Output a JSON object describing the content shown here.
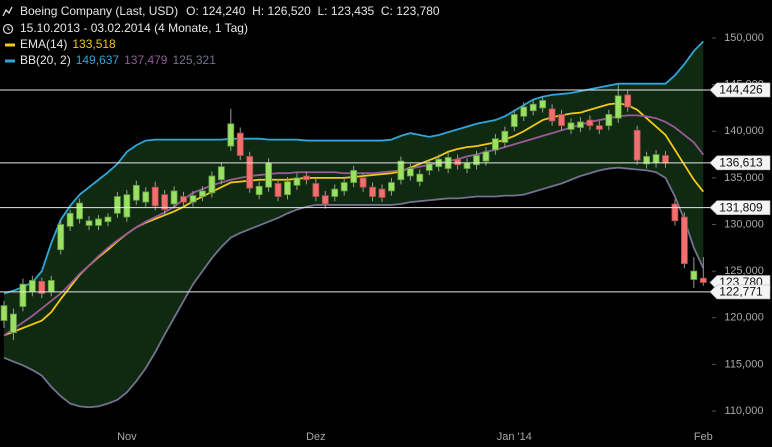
{
  "header": {
    "title": "Boeing Company (Last, USD)",
    "ohlc": "O: 124,240  H: 126,520  L: 123,435  C: 123,780",
    "period": "15.10.2013 - 03.02.2014 (4 Monate, 1 Tag)"
  },
  "chart_data": {
    "type": "candlestick",
    "categories": [
      null,
      null,
      null,
      null,
      null,
      null,
      null,
      null,
      null,
      null,
      null,
      null,
      null,
      "Nov",
      null,
      null,
      null,
      null,
      null,
      null,
      null,
      null,
      null,
      null,
      null,
      null,
      null,
      null,
      null,
      null,
      null,
      null,
      null,
      "Dez",
      null,
      null,
      null,
      null,
      null,
      null,
      null,
      null,
      null,
      null,
      null,
      null,
      null,
      null,
      null,
      null,
      null,
      null,
      null,
      null,
      "Jan '14",
      null,
      null,
      null,
      null,
      null,
      null,
      null,
      null,
      null,
      null,
      null,
      null,
      null,
      null,
      null,
      null,
      null,
      null,
      null,
      "Feb"
    ],
    "open": [
      119700,
      118400,
      121200,
      122800,
      123900,
      122800,
      127300,
      129800,
      130600,
      129900,
      129900,
      130300,
      131200,
      130800,
      132600,
      132400,
      134000,
      133200,
      132200,
      133000,
      132400,
      133000,
      133400,
      134800,
      138400,
      139800,
      137300,
      133200,
      134000,
      134400,
      133200,
      134200,
      135200,
      134400,
      133100,
      133000,
      133600,
      134500,
      135000,
      134000,
      133800,
      133600,
      134800,
      135200,
      134600,
      135800,
      136200,
      136000,
      137000,
      136000,
      136400,
      136800,
      138000,
      138800,
      140500,
      141600,
      142200,
      142500,
      142400,
      141800,
      140200,
      140400,
      141200,
      140600,
      140600,
      141400,
      143900,
      140100,
      136500,
      136600,
      137400,
      132200,
      130800,
      124100,
      124240
    ],
    "high": [
      121800,
      121000,
      124200,
      124500,
      124300,
      124500,
      130500,
      131600,
      132800,
      130900,
      131000,
      131200,
      133500,
      133700,
      134700,
      134000,
      134600,
      133700,
      134100,
      133500,
      133600,
      134100,
      135700,
      136700,
      142400,
      140400,
      137800,
      134600,
      137100,
      134900,
      135100,
      135500,
      135700,
      134900,
      133600,
      134300,
      135000,
      136300,
      135500,
      134500,
      134300,
      135000,
      137300,
      136500,
      135900,
      137000,
      137500,
      137700,
      137500,
      137100,
      137900,
      138300,
      139700,
      140500,
      142300,
      143100,
      143400,
      143800,
      142900,
      142300,
      141400,
      141500,
      141700,
      141100,
      142300,
      145000,
      144400,
      140600,
      137800,
      138000,
      137900,
      132700,
      131300,
      126500,
      126520
    ],
    "low": [
      118900,
      117600,
      120700,
      122300,
      122100,
      122300,
      126800,
      129300,
      130100,
      129400,
      129400,
      129800,
      130700,
      130300,
      132100,
      131900,
      131500,
      131100,
      131700,
      131900,
      131900,
      132500,
      132900,
      134300,
      137900,
      136900,
      133400,
      132700,
      133500,
      132500,
      132700,
      133700,
      134300,
      132500,
      131700,
      132500,
      133100,
      134000,
      133500,
      132500,
      132400,
      133100,
      134300,
      134700,
      134100,
      135300,
      135700,
      135500,
      135900,
      135500,
      135900,
      136300,
      137500,
      138300,
      140000,
      141100,
      141700,
      142000,
      140600,
      140100,
      139700,
      139900,
      140100,
      139700,
      140100,
      140900,
      142100,
      136400,
      136000,
      136100,
      136100,
      129900,
      125300,
      123200,
      123435
    ],
    "close": [
      121300,
      120400,
      123600,
      124000,
      122600,
      124000,
      130000,
      131200,
      132300,
      130400,
      130600,
      130800,
      133000,
      133200,
      134200,
      133500,
      132000,
      131600,
      133600,
      132400,
      133100,
      133600,
      135200,
      136200,
      140800,
      137400,
      133900,
      134100,
      136600,
      133000,
      134600,
      135000,
      134800,
      133000,
      132200,
      133800,
      134500,
      135800,
      134000,
      133000,
      132900,
      134500,
      136800,
      136000,
      135400,
      136500,
      137000,
      137200,
      136400,
      136600,
      137400,
      137800,
      139200,
      140000,
      141800,
      142600,
      142900,
      143300,
      141100,
      140600,
      140900,
      141000,
      140600,
      140200,
      141800,
      143800,
      142600,
      136900,
      137300,
      137500,
      136600,
      130400,
      125800,
      125000,
      123780
    ],
    "up_color": "#9be064",
    "down_color": "#f07070",
    "ylim": [
      108000,
      154000
    ],
    "yticks": [
      {
        "value": 110000,
        "label": "110,000"
      },
      {
        "value": 115000,
        "label": "115,000"
      },
      {
        "value": 120000,
        "label": "120,000"
      },
      {
        "value": 125000,
        "label": "125,000"
      },
      {
        "value": 130000,
        "label": "130,000"
      },
      {
        "value": 135000,
        "label": "135,000"
      },
      {
        "value": 140000,
        "label": "140,000"
      },
      {
        "value": 145000,
        "label": "145,000"
      },
      {
        "value": 150000,
        "label": "150,000"
      }
    ],
    "grid": false,
    "indicators": [
      {
        "name": "EMA(14)",
        "lines": [
          {
            "color": "#f2c81a",
            "last_label": "133,518",
            "values": [
              118100,
              118500,
              118900,
              119300,
              119700,
              120600,
              122000,
              123300,
              124600,
              125600,
              126500,
              127300,
              128200,
              129000,
              129700,
              130200,
              130600,
              131000,
              131400,
              131900,
              132500,
              133000,
              133500,
              134000,
              134500,
              134600,
              134700,
              134800,
              134800,
              134800,
              134800,
              134900,
              135000,
              135000,
              135000,
              135000,
              135000,
              135100,
              135200,
              135300,
              135400,
              135500,
              135700,
              136100,
              136500,
              136900,
              137300,
              137800,
              138100,
              138300,
              138400,
              138600,
              138800,
              139100,
              139500,
              140000,
              140600,
              141200,
              141500,
              141700,
              141900,
              142000,
              142300,
              142600,
              142900,
              143000,
              142800,
              142300,
              141400,
              140500,
              139600,
              138000,
              136400,
              134800,
              133518
            ]
          }
        ]
      },
      {
        "name": "BB(20, 2)",
        "fill": "#0f2a11",
        "lines": [
          {
            "color": "#2fa6d9",
            "last_label": "149,637",
            "values": [
              122600,
              122900,
              123300,
              123800,
              125000,
              128000,
              130500,
              132000,
              133200,
              134000,
              134800,
              135600,
              136500,
              137800,
              138500,
              139000,
              139100,
              139100,
              139100,
              139100,
              139100,
              139100,
              139100,
              139100,
              139200,
              139200,
              139200,
              139200,
              139100,
              139100,
              139100,
              139100,
              139000,
              139000,
              139000,
              139000,
              139000,
              139000,
              139000,
              139000,
              139000,
              139100,
              139500,
              139800,
              139600,
              139400,
              139600,
              139900,
              140200,
              140500,
              140800,
              141000,
              141200,
              141600,
              142200,
              142800,
              143400,
              143700,
              143900,
              144000,
              144100,
              144300,
              144500,
              144700,
              144900,
              145100,
              145100,
              145100,
              145100,
              145100,
              145100,
              146000,
              147200,
              148600,
              149637
            ]
          },
          {
            "color": "#9a5a9a",
            "last_label": "137,479",
            "values": [
              118100,
              118800,
              119500,
              120200,
              121000,
              121800,
              122600,
              123600,
              124700,
              125600,
              126600,
              127500,
              128300,
              129000,
              129700,
              130300,
              130800,
              131300,
              131900,
              132700,
              133400,
              133800,
              134200,
              134500,
              134800,
              135000,
              135200,
              135300,
              135400,
              135500,
              135500,
              135600,
              135600,
              135600,
              135600,
              135600,
              135500,
              135500,
              135500,
              135500,
              135600,
              135700,
              135800,
              136000,
              136200,
              136400,
              136600,
              136800,
              137000,
              137300,
              137500,
              137800,
              138000,
              138300,
              138600,
              138900,
              139200,
              139500,
              139800,
              140100,
              140400,
              140700,
              141000,
              141200,
              141400,
              141600,
              141700,
              141700,
              141600,
              141400,
              141000,
              140400,
              139600,
              138800,
              137479
            ]
          },
          {
            "color": "#72728e",
            "last_label": "125,321",
            "values": [
              115700,
              115300,
              114900,
              114400,
              113800,
              112600,
              111600,
              110800,
              110500,
              110400,
              110500,
              110800,
              111200,
              112000,
              113200,
              114600,
              116300,
              118200,
              120000,
              121800,
              123600,
              125000,
              126400,
              127600,
              128600,
              129100,
              129500,
              129900,
              130300,
              130700,
              131200,
              131600,
              131900,
              132100,
              132100,
              132100,
              132100,
              132100,
              132100,
              132100,
              132100,
              132100,
              132200,
              132400,
              132500,
              132600,
              132700,
              132800,
              132800,
              132900,
              133000,
              133000,
              133000,
              133100,
              133100,
              133200,
              133500,
              133800,
              134100,
              134400,
              134800,
              135200,
              135500,
              135800,
              136000,
              136100,
              136000,
              135900,
              135800,
              135600,
              135000,
              133000,
              130500,
              127500,
              125321
            ]
          }
        ]
      }
    ],
    "last_price": {
      "value": 123780,
      "label": "123,780"
    },
    "levels": [
      {
        "value": 144426,
        "label": "144,426"
      },
      {
        "value": 136613,
        "label": "136,613"
      },
      {
        "value": 131809,
        "label": "131,809"
      },
      {
        "value": 122771,
        "label": "122,771"
      }
    ]
  }
}
